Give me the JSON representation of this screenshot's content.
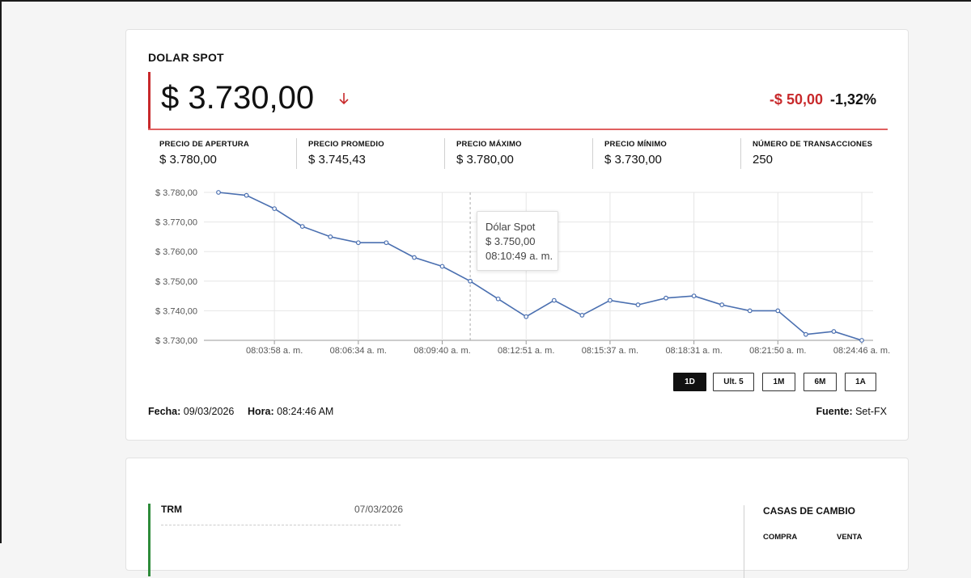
{
  "spot": {
    "title": "DOLAR SPOT",
    "price": "$ 3.730,00",
    "change_abs": "-$ 50,00",
    "change_pct": "-1,32%",
    "trend": "down-arrow-icon",
    "stats": [
      {
        "label": "PRECIO DE APERTURA",
        "value": "$ 3.780,00"
      },
      {
        "label": "PRECIO PROMEDIO",
        "value": "$ 3.745,43"
      },
      {
        "label": "PRECIO MÁXIMO",
        "value": "$ 3.780,00"
      },
      {
        "label": "PRECIO MÍNIMO",
        "value": "$ 3.730,00"
      },
      {
        "label": "NÚMERO DE TRANSACCIONES",
        "value": "250"
      }
    ],
    "tooltip": {
      "series": "Dólar Spot",
      "value": "$ 3.750,00",
      "time": "08:10:49 a. m."
    },
    "ranges": [
      "1D",
      "Ult. 5",
      "1M",
      "6M",
      "1A"
    ],
    "active_range": "1D",
    "footer": {
      "date_label": "Fecha:",
      "date": "09/03/2026",
      "time_label": "Hora:",
      "time": "08:24:46 AM",
      "source_label": "Fuente:",
      "source": "Set-FX"
    }
  },
  "trm": {
    "title": "TRM",
    "date": "07/03/2026",
    "casas_title": "CASAS DE CAMBIO",
    "col_buy": "COMPRA",
    "col_sell": "VENTA"
  },
  "colors": {
    "negative": "#c8292b",
    "line": "#4a6fb0",
    "trm_accent": "#2e8b3a"
  },
  "chart_data": {
    "type": "line",
    "series": [
      {
        "name": "Dólar Spot",
        "values": [
          3780,
          3779,
          3774.5,
          3768.5,
          3765,
          3763,
          3763,
          3758,
          3755,
          3750,
          3744,
          3738,
          3743.5,
          3738.5,
          3743.5,
          3742,
          3744.3,
          3745,
          3742,
          3740,
          3740,
          3732,
          3733,
          3730
        ]
      }
    ],
    "ylim": [
      3730,
      3780
    ],
    "yticks": [
      3730,
      3740,
      3750,
      3760,
      3770,
      3780
    ],
    "ytick_labels": [
      "$ 3.730,00",
      "$ 3.740,00",
      "$ 3.750,00",
      "$ 3.760,00",
      "$ 3.770,00",
      "$ 3.780,00"
    ],
    "xtick_labels": [
      "08:03:58 a. m.",
      "08:06:34 a. m.",
      "08:09:40 a. m.",
      "08:12:51 a. m.",
      "08:15:37 a. m.",
      "08:18:31 a. m.",
      "08:21:50 a. m.",
      "08:24:46 a. m."
    ],
    "xtick_index": [
      2,
      5,
      8,
      11,
      14,
      17,
      20,
      23
    ],
    "hover_index": 9,
    "grid": true,
    "legend": "none"
  }
}
